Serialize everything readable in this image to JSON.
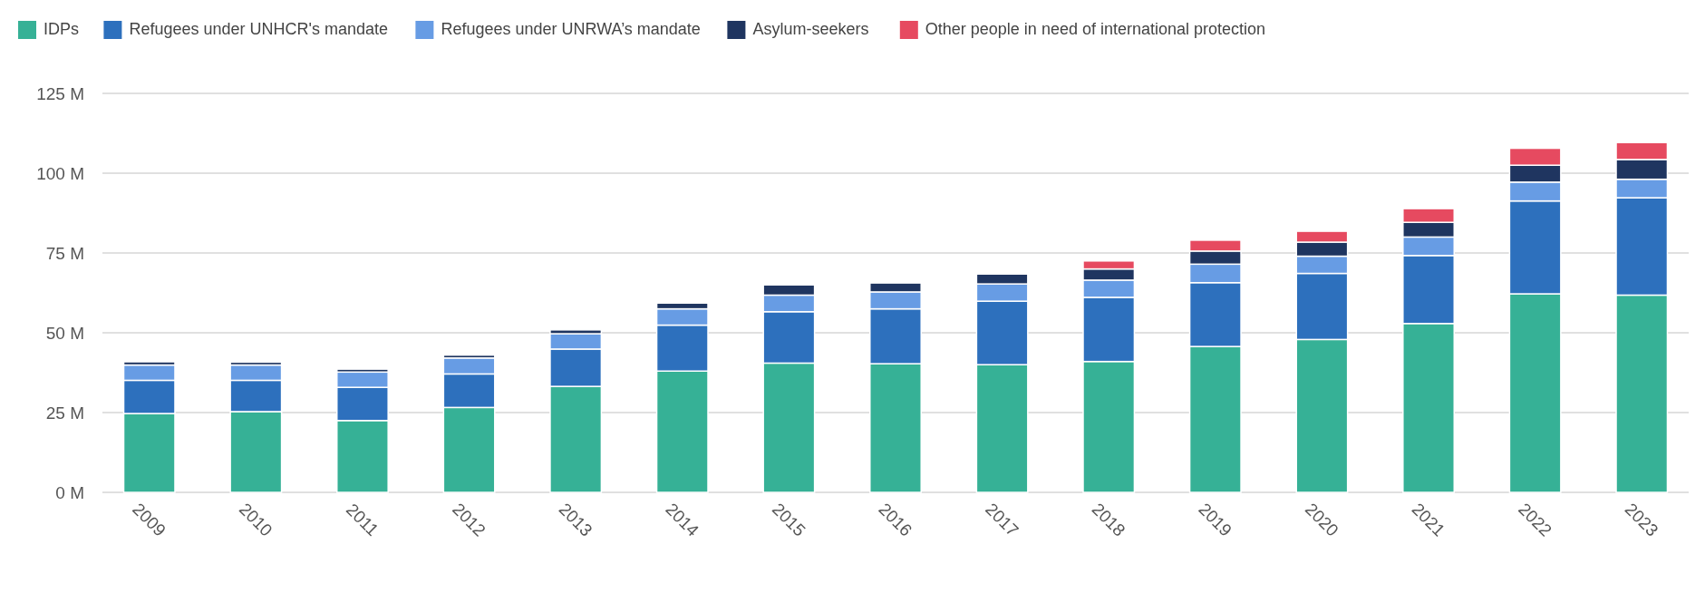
{
  "chart_data": {
    "type": "bar",
    "stacked": true,
    "categories": [
      "2009",
      "2010",
      "2011",
      "2012",
      "2013",
      "2014",
      "2015",
      "2016",
      "2017",
      "2018",
      "2019",
      "2020",
      "2021",
      "2022",
      "2023"
    ],
    "series": [
      {
        "name": "IDPs",
        "color": "#36b196",
        "values": [
          24.7,
          25.3,
          22.5,
          26.6,
          33.2,
          38.0,
          40.5,
          40.3,
          40.0,
          41.0,
          45.7,
          47.9,
          52.9,
          62.2,
          61.8
        ]
      },
      {
        "name": "Refugees under UNHCR's mandate",
        "color": "#2d70bd",
        "values": [
          10.4,
          9.8,
          10.4,
          10.5,
          11.7,
          14.4,
          16.1,
          17.2,
          19.9,
          20.1,
          20.0,
          20.7,
          21.3,
          29.1,
          30.5
        ]
      },
      {
        "name": "Refugees under UNRWA’s mandate",
        "color": "#679ce4",
        "values": [
          4.8,
          4.8,
          4.8,
          5.0,
          4.8,
          5.1,
          5.2,
          5.3,
          5.4,
          5.4,
          5.8,
          5.4,
          5.8,
          5.9,
          5.8
        ]
      },
      {
        "name": "Asylum-seekers",
        "color": "#1f3560",
        "values": [
          1.0,
          0.9,
          0.9,
          0.9,
          1.2,
          1.8,
          3.2,
          2.8,
          3.1,
          3.5,
          4.1,
          4.4,
          4.6,
          5.3,
          6.2
        ]
      },
      {
        "name": "Other people in need of international protection",
        "color": "#e64a60",
        "values": [
          null,
          null,
          null,
          null,
          null,
          null,
          null,
          null,
          null,
          2.5,
          3.4,
          3.4,
          4.3,
          5.3,
          5.3
        ]
      }
    ],
    "ylim": [
      0,
      125
    ],
    "yticks": [
      {
        "value": 0,
        "label": "0 M"
      },
      {
        "value": 25,
        "label": "25 M"
      },
      {
        "value": 50,
        "label": "50 M"
      },
      {
        "value": 75,
        "label": "75 M"
      },
      {
        "value": 100,
        "label": "100 M"
      },
      {
        "value": 125,
        "label": "125 M"
      }
    ],
    "grid": "y",
    "legend": "top left"
  }
}
